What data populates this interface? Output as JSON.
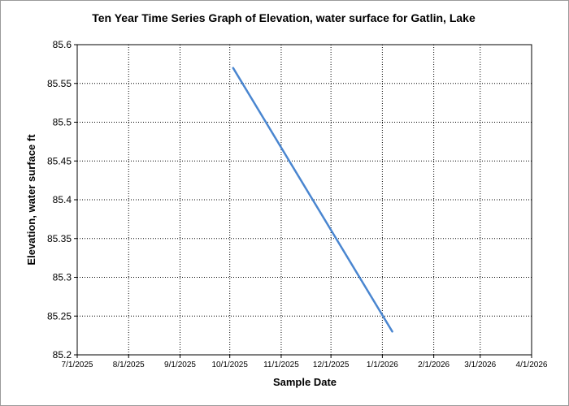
{
  "chart_data": {
    "type": "line",
    "title": "Ten Year Time Series Graph of Elevation, water surface for Gatlin, Lake",
    "xlabel": "Sample Date",
    "ylabel": "Elevation, water surface ft",
    "x_ticks": [
      "7/1/2025",
      "8/1/2025",
      "9/1/2025",
      "10/1/2025",
      "11/1/2025",
      "12/1/2025",
      "1/1/2026",
      "2/1/2026",
      "3/1/2026",
      "4/1/2026"
    ],
    "y_ticks": [
      "85.2",
      "85.25",
      "85.3",
      "85.35",
      "85.4",
      "85.45",
      "85.5",
      "85.55",
      "85.6"
    ],
    "ylim": [
      85.2,
      85.6
    ],
    "xlim": [
      "2025-07-01",
      "2026-04-01"
    ],
    "grid": true,
    "line_color": "#4a86d0",
    "series": [
      {
        "x": [
          "2025-10-03",
          "2026-01-07"
        ],
        "values": [
          85.57,
          85.23
        ]
      }
    ]
  }
}
